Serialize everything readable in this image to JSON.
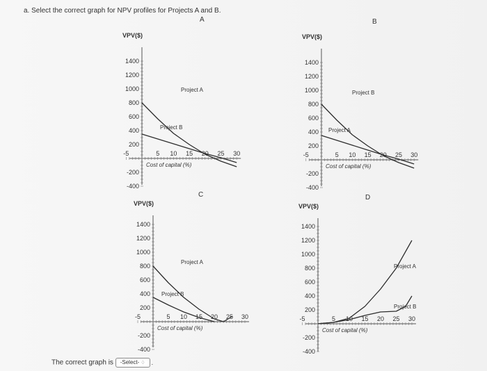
{
  "question": "a. Select the correct graph for NPV profiles for Projects A and B.",
  "answer": {
    "label": "The correct graph is",
    "select_value": "-Select-",
    "trailing": "."
  },
  "chart_data": [
    {
      "panel": "A",
      "type": "line",
      "ylabel": "VPV($)",
      "xlabel": "Cost of capital (%)",
      "yticks": [
        1400,
        1200,
        1000,
        800,
        600,
        400,
        200,
        -200,
        -400
      ],
      "xticks": [
        -5,
        5,
        10,
        15,
        20,
        25,
        30
      ],
      "xlim": [
        -5,
        30
      ],
      "ylim": [
        -400,
        1400
      ],
      "series": [
        {
          "name": "Project A",
          "x": [
            0,
            5,
            10,
            15,
            20,
            25,
            30
          ],
          "y": [
            800,
            570,
            360,
            200,
            60,
            -40,
            -120
          ]
        },
        {
          "name": "Project B",
          "x": [
            0,
            5,
            10,
            15,
            20,
            25,
            30
          ],
          "y": [
            350,
            280,
            210,
            140,
            70,
            10,
            -60
          ]
        }
      ]
    },
    {
      "panel": "B",
      "type": "line",
      "ylabel": "VPV($)",
      "xlabel": "Cost of capital (%)",
      "yticks": [
        1400,
        1200,
        1000,
        800,
        600,
        400,
        200,
        -200,
        -400
      ],
      "xticks": [
        -5,
        5,
        10,
        15,
        20,
        25,
        30
      ],
      "xlim": [
        -5,
        30
      ],
      "ylim": [
        -400,
        1400
      ],
      "series": [
        {
          "name": "Project B",
          "x": [
            0,
            5,
            10,
            15,
            20,
            25,
            30
          ],
          "y": [
            800,
            570,
            360,
            200,
            60,
            -40,
            -120
          ]
        },
        {
          "name": "Project A",
          "x": [
            0,
            5,
            10,
            15,
            20,
            25,
            30
          ],
          "y": [
            350,
            280,
            210,
            140,
            70,
            10,
            -60
          ]
        }
      ]
    },
    {
      "panel": "C",
      "type": "line",
      "ylabel": "VPV($)",
      "xlabel": "Cost of capital (%)",
      "yticks": [
        1400,
        1200,
        1000,
        800,
        600,
        400,
        200,
        -200,
        -400
      ],
      "xticks": [
        -5,
        5,
        10,
        15,
        20,
        25,
        30
      ],
      "xlim": [
        -5,
        30
      ],
      "ylim": [
        -400,
        1400
      ],
      "series": [
        {
          "name": "Project A",
          "x": [
            0,
            5,
            10,
            15,
            20,
            23,
            26
          ],
          "y": [
            800,
            560,
            350,
            180,
            40,
            0,
            80
          ]
        },
        {
          "name": "Project B",
          "x": [
            0,
            5,
            10,
            15,
            20
          ],
          "y": [
            350,
            240,
            140,
            60,
            0
          ]
        }
      ]
    },
    {
      "panel": "D",
      "type": "line",
      "ylabel": "VPV($)",
      "xlabel": "Cost of capital (%)",
      "yticks": [
        1400,
        1200,
        1000,
        800,
        600,
        400,
        200,
        -200,
        -400
      ],
      "xticks": [
        -5,
        5,
        10,
        15,
        20,
        25,
        30
      ],
      "xlim": [
        -5,
        30
      ],
      "ylim": [
        -400,
        1400
      ],
      "series": [
        {
          "name": "Project A",
          "x": [
            0,
            5,
            10,
            15,
            20,
            25,
            30
          ],
          "y": [
            0,
            20,
            80,
            250,
            500,
            800,
            1200
          ]
        },
        {
          "name": "Project B",
          "x": [
            0,
            5,
            10,
            15,
            20,
            25,
            28,
            30
          ],
          "y": [
            0,
            20,
            60,
            120,
            170,
            180,
            250,
            400
          ]
        }
      ]
    }
  ]
}
